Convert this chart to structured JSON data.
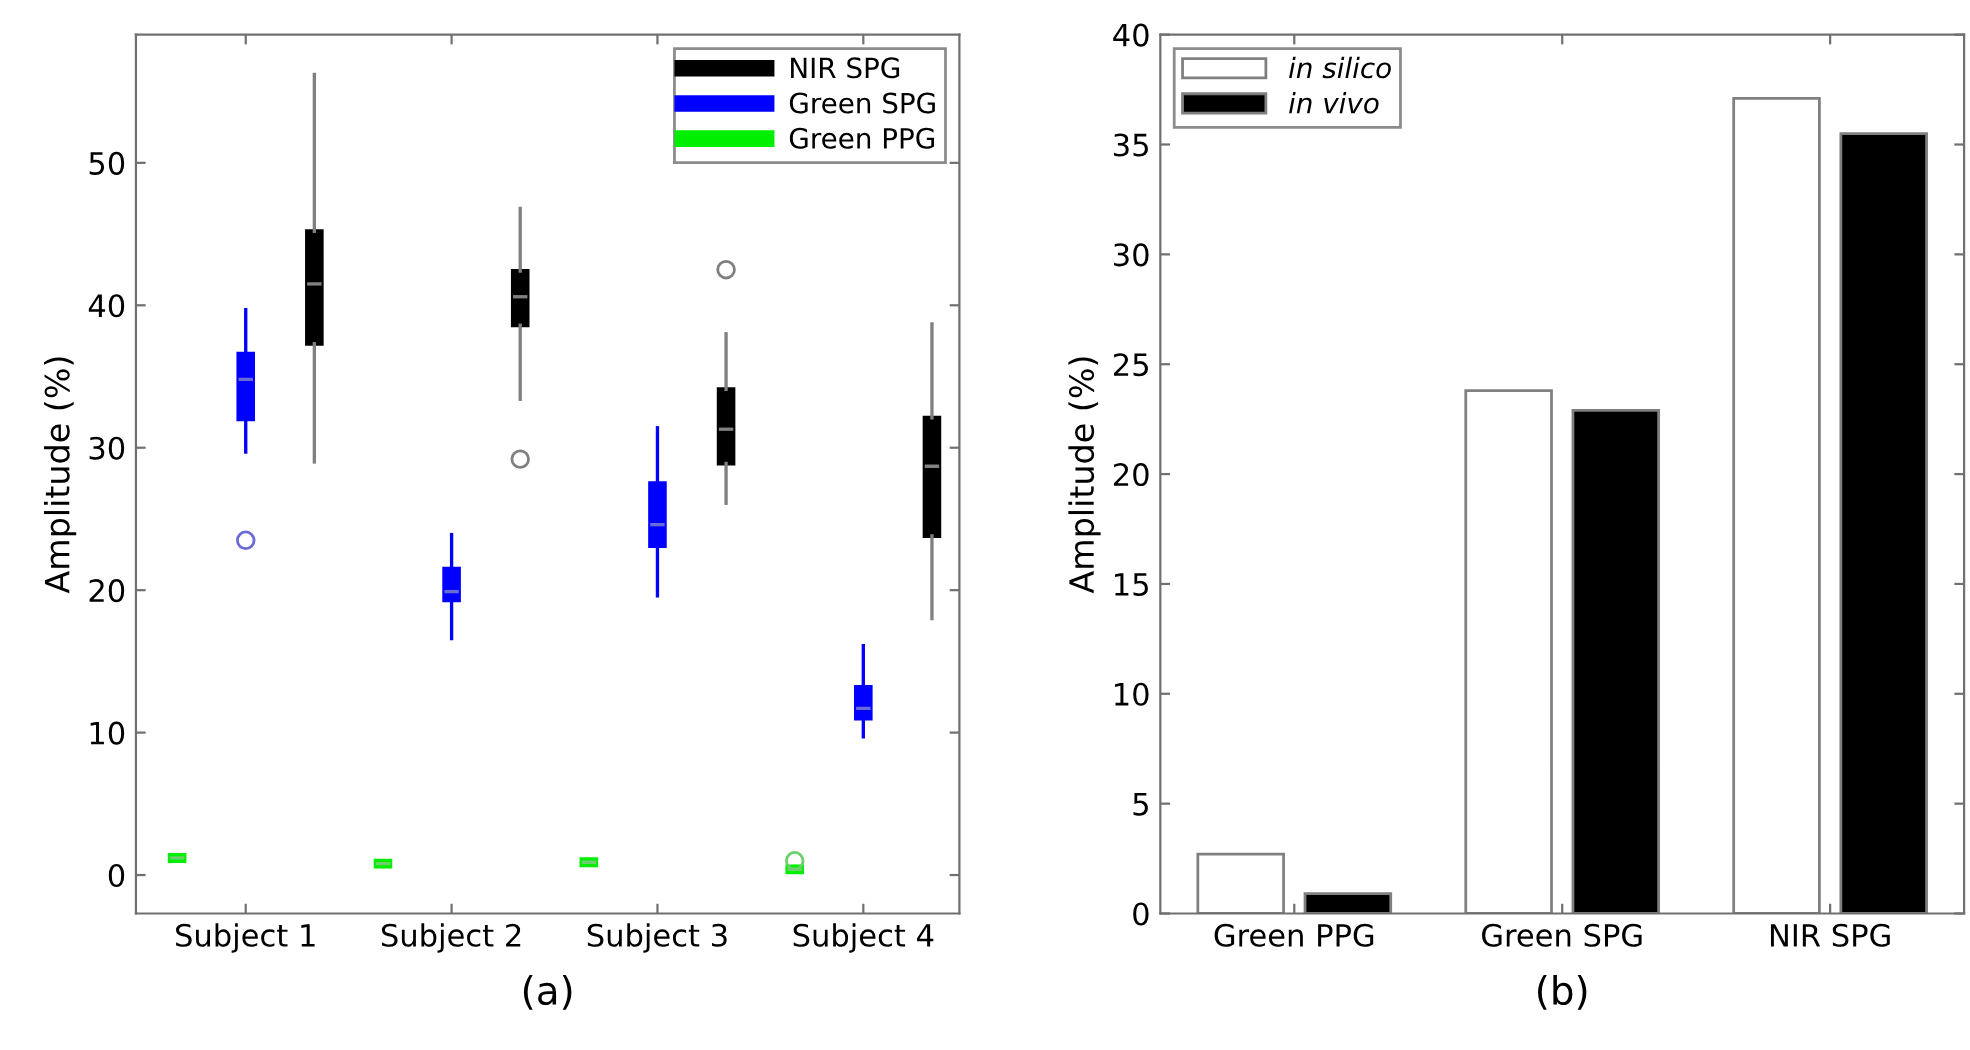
{
  "chart_data": [
    {
      "type": "box",
      "xlabel": "(a)",
      "ylabel": "Amplitude (%)",
      "categories": [
        "Subject 1",
        "Subject 2",
        "Subject 3",
        "Subject 4"
      ],
      "ylim": [
        -2.7,
        59
      ],
      "yticks": [
        0,
        10,
        20,
        30,
        40,
        50
      ],
      "grid": false,
      "legend": "top right",
      "series": [
        {
          "name": "NIR SPG",
          "color": "#000000",
          "boxes": [
            {
              "low": 29.0,
              "q1": 37.3,
              "median": 41.5,
              "q3": 45.2,
              "high": 56.2
            },
            {
              "low": 33.4,
              "q1": 38.6,
              "median": 40.6,
              "q3": 42.4,
              "high": 46.8,
              "outliers": [
                29.2
              ]
            },
            {
              "low": 26.1,
              "q1": 28.9,
              "median": 31.3,
              "q3": 34.1,
              "high": 38.0,
              "outliers": [
                42.5
              ]
            },
            {
              "low": 18.0,
              "q1": 23.8,
              "median": 28.7,
              "q3": 32.1,
              "high": 38.7
            }
          ]
        },
        {
          "name": "Green SPG",
          "color": "#0000ff",
          "boxes": [
            {
              "low": 29.7,
              "q1": 32.0,
              "median": 34.8,
              "q3": 36.6,
              "high": 39.7,
              "outliers": [
                23.5
              ]
            },
            {
              "low": 16.6,
              "q1": 19.3,
              "median": 19.9,
              "q3": 21.5,
              "high": 23.9
            },
            {
              "low": 19.6,
              "q1": 23.1,
              "median": 24.6,
              "q3": 27.5,
              "high": 31.4
            },
            {
              "low": 9.7,
              "q1": 11.0,
              "median": 11.7,
              "q3": 13.2,
              "high": 16.1
            }
          ]
        },
        {
          "name": "Green PPG",
          "color": "#00ee00",
          "boxes": [
            {
              "low": 1.0,
              "q1": 1.0,
              "median": 1.2,
              "q3": 1.4,
              "high": 1.4
            },
            {
              "low": 0.6,
              "q1": 0.6,
              "median": 0.8,
              "q3": 1.0,
              "high": 1.0
            },
            {
              "low": 0.7,
              "q1": 0.7,
              "median": 0.9,
              "q3": 1.1,
              "high": 1.1
            },
            {
              "low": 0.2,
              "q1": 0.2,
              "median": 0.4,
              "q3": 0.6,
              "high": 0.6,
              "outliers": [
                1.0
              ]
            }
          ]
        }
      ]
    },
    {
      "type": "bar",
      "xlabel": "(b)",
      "ylabel": "Amplitude (%)",
      "categories": [
        "Green PPG",
        "Green SPG",
        "NIR SPG"
      ],
      "ylim": [
        0,
        40
      ],
      "yticks": [
        0,
        5,
        10,
        15,
        20,
        25,
        30,
        35,
        40
      ],
      "grid": false,
      "legend": "top left",
      "series": [
        {
          "name": "in silico",
          "color": "#ffffff",
          "values": [
            2.7,
            23.8,
            37.1
          ]
        },
        {
          "name": "in vivo",
          "color": "#000000",
          "values": [
            0.9,
            22.9,
            35.5
          ]
        }
      ]
    }
  ]
}
